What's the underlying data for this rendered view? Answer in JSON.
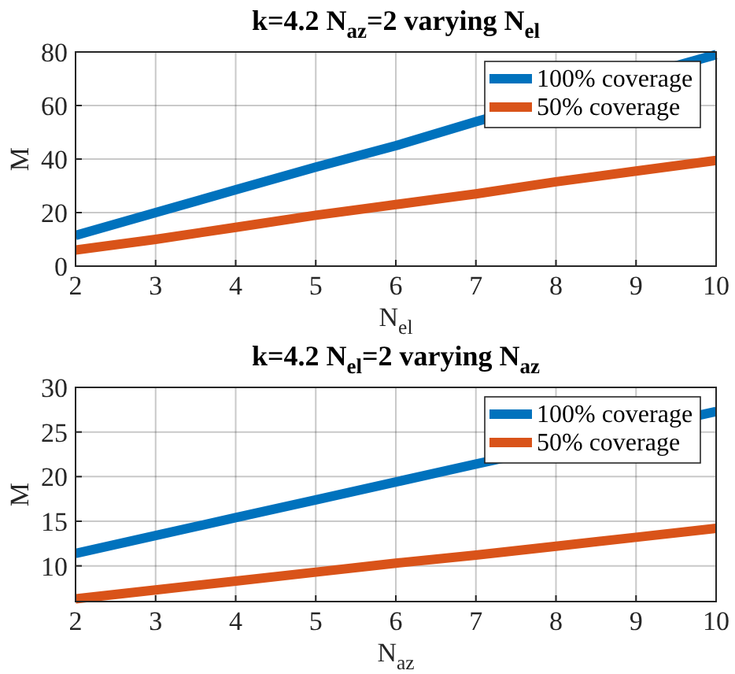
{
  "chart_data": [
    {
      "type": "line",
      "title": "k=4.2 N$_{az}$=2  varying N$_{el}$",
      "xlabel": "N$_{el}$",
      "ylabel": "M",
      "x": [
        2,
        3,
        4,
        5,
        6,
        7,
        8,
        9,
        10
      ],
      "xlim": [
        2,
        10
      ],
      "xticks": [
        2,
        3,
        4,
        5,
        6,
        7,
        8,
        9,
        10
      ],
      "ylim": [
        0,
        80
      ],
      "yticks": [
        0,
        20,
        40,
        60,
        80
      ],
      "grid": true,
      "legend": "top right",
      "series": [
        {
          "name": "100% coverage",
          "color": "#0072bd",
          "values": [
            11.5,
            20,
            28.5,
            37,
            45,
            54,
            null,
            null,
            79
          ]
        },
        {
          "name": "50% coverage",
          "color": "#d95319",
          "values": [
            6,
            10,
            14.5,
            19,
            23,
            27,
            31.5,
            35.5,
            39.5
          ]
        }
      ]
    },
    {
      "type": "line",
      "title": "k=4.2 N$_{el}$=2 varying N$_{az}$",
      "xlabel": "N$_{az}$",
      "ylabel": "M",
      "x": [
        2,
        3,
        4,
        5,
        6,
        7,
        8,
        9,
        10
      ],
      "xlim": [
        2,
        10
      ],
      "xticks": [
        2,
        3,
        4,
        5,
        6,
        7,
        8,
        9,
        10
      ],
      "ylim": [
        6,
        30
      ],
      "yticks": [
        10,
        15,
        20,
        25,
        30
      ],
      "grid": true,
      "legend": "top right",
      "series": [
        {
          "name": "100% coverage",
          "color": "#0072bd",
          "values": [
            11.4,
            13.4,
            15.4,
            17.4,
            19.4,
            21.4,
            null,
            null,
            27.3
          ]
        },
        {
          "name": "50% coverage",
          "color": "#d95319",
          "values": [
            6.3,
            7.3,
            8.3,
            9.3,
            10.3,
            11.2,
            12.2,
            13.2,
            14.2
          ]
        }
      ]
    }
  ]
}
